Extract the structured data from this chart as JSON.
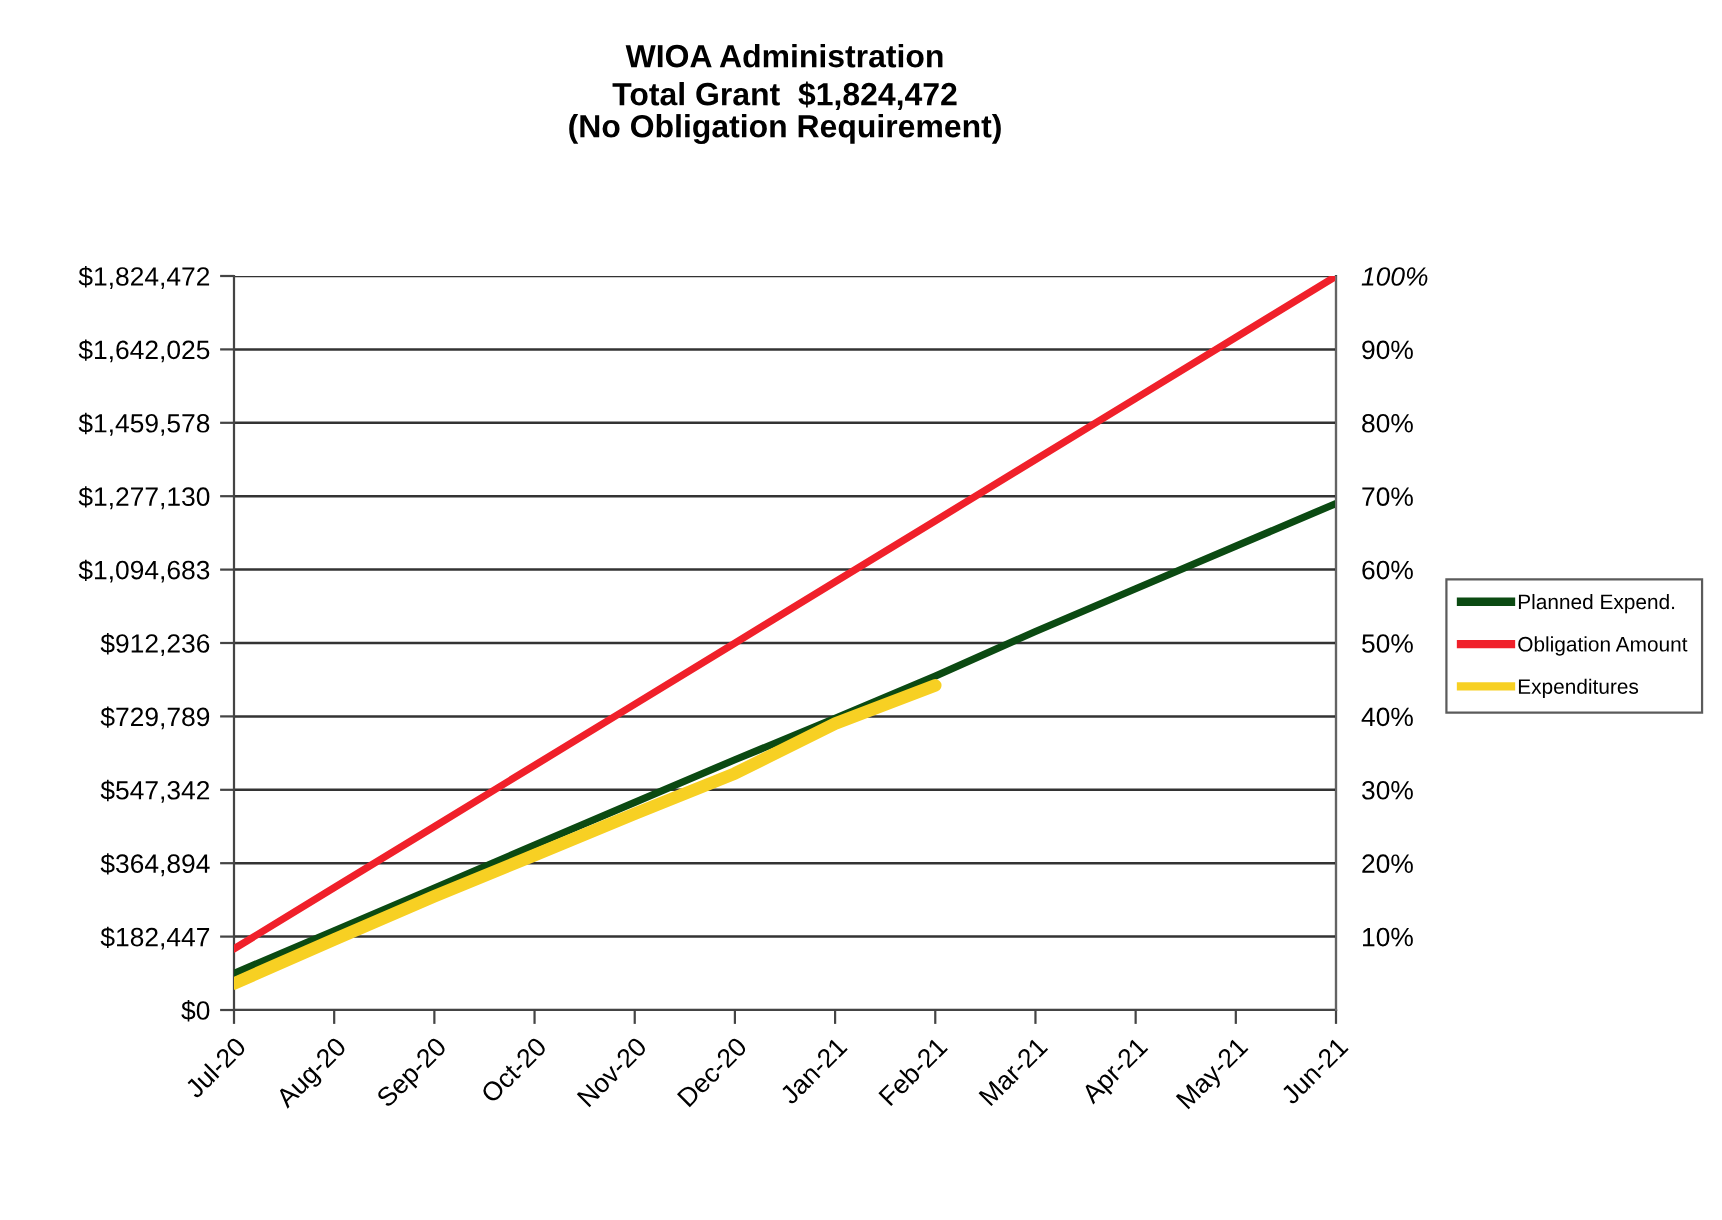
{
  "chart_data": {
    "type": "line",
    "title": "WIOA Administration",
    "subtitle": "Total Grant  $1,824,472\n(No Obligation Requirement)",
    "categories": [
      "Jul-20",
      "Aug-20",
      "Sep-20",
      "Oct-20",
      "Nov-20",
      "Dec-20",
      "Jan-21",
      "Feb-21",
      "Mar-21",
      "Apr-21",
      "May-21",
      "Jun-21"
    ],
    "series": [
      {
        "name": "Planned Expend.",
        "color": "#0b4a12",
        "values": [
          91000,
          197000,
          303000,
          410000,
          516000,
          622000,
          725000,
          830000,
          941000,
          1047000,
          1153000,
          1259000
        ]
      },
      {
        "name": "Obligation Amount",
        "color": "#f0202a",
        "values": [
          152000,
          304000,
          456000,
          608000,
          760000,
          912000,
          1064000,
          1216000,
          1368000,
          1520000,
          1672000,
          1824000
        ]
      },
      {
        "name": "Expenditures",
        "color": "#f7d023",
        "values": [
          66000,
          175000,
          283000,
          385000,
          488000,
          588000,
          712000,
          807000,
          null,
          null,
          null,
          null
        ]
      }
    ],
    "ylim": [
      0,
      1824472
    ],
    "yticks": [
      {
        "value": 0,
        "label": "$0"
      },
      {
        "value": 182447,
        "label": "$182,447"
      },
      {
        "value": 364894,
        "label": "$364,894"
      },
      {
        "value": 547342,
        "label": "$547,342"
      },
      {
        "value": 729789,
        "label": "$729,789"
      },
      {
        "value": 912236,
        "label": "$912,236"
      },
      {
        "value": 1094683,
        "label": "$1,094,683"
      },
      {
        "value": 1277130,
        "label": "$1,277,130"
      },
      {
        "value": 1459578,
        "label": "$1,459,578"
      },
      {
        "value": 1642025,
        "label": "$1,642,025"
      },
      {
        "value": 1824472,
        "label": "$1,824,472"
      }
    ],
    "y2lim": [
      0,
      100
    ],
    "y2ticks": [
      {
        "value": 10,
        "label": "10%"
      },
      {
        "value": 20,
        "label": "20%"
      },
      {
        "value": 30,
        "label": "30%"
      },
      {
        "value": 40,
        "label": "40%"
      },
      {
        "value": 50,
        "label": "50%"
      },
      {
        "value": 60,
        "label": "60%"
      },
      {
        "value": 70,
        "label": "70%"
      },
      {
        "value": 80,
        "label": "80%"
      },
      {
        "value": 90,
        "label": "90%"
      },
      {
        "value": 100,
        "label": "100%"
      }
    ],
    "grid": "y",
    "legend": "right",
    "marker": "none",
    "line_style": "solid"
  }
}
